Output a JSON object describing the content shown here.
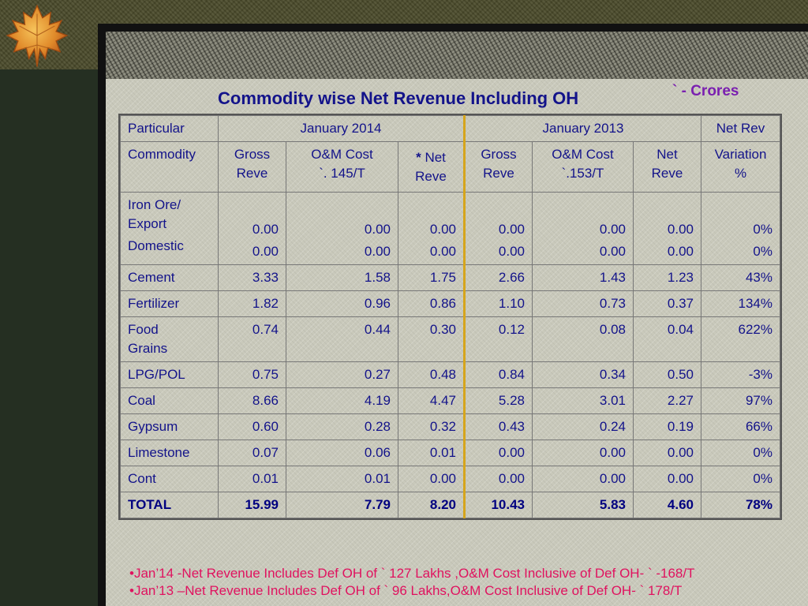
{
  "title": "Commodity wise Net Revenue Including OH",
  "units": "` - Crores",
  "header": {
    "particular": "Particular",
    "jan2014": "January 2014",
    "jan2013": "January 2013",
    "net_rev": "Net Rev",
    "commodity": "Commodity",
    "gross_reve_1": [
      "Gross",
      "Reve"
    ],
    "om_cost_1": [
      "O&M Cost",
      "`. 145/T"
    ],
    "net_reve_1_star": "*",
    "net_reve_1": [
      "Net",
      "Reve"
    ],
    "gross_reve_2": [
      "Gross",
      "Reve"
    ],
    "om_cost_2": [
      "O&M Cost",
      "`.153/T"
    ],
    "net_reve_2": [
      "Net",
      "Reve"
    ],
    "variation": [
      "Variation",
      "%"
    ]
  },
  "iron_ore": {
    "label_lines": [
      "Iron Ore/",
      "Export",
      "Domestic"
    ],
    "export": [
      "0.00",
      "0.00",
      "0.00",
      "0.00",
      "0.00",
      "0.00",
      "0%"
    ],
    "domestic": [
      "0.00",
      "0.00",
      "0.00",
      "0.00",
      "0.00",
      "0.00",
      "0%"
    ]
  },
  "rows": [
    {
      "name": "Cement",
      "values": [
        "3.33",
        "1.58",
        "1.75",
        "2.66",
        "1.43",
        "1.23",
        "43%"
      ]
    },
    {
      "name": "Fertilizer",
      "values": [
        "1.82",
        "0.96",
        "0.86",
        "1.10",
        "0.73",
        "0.37",
        "134%"
      ]
    },
    {
      "name": "Food Grains",
      "name_lines": [
        "Food",
        "Grains"
      ],
      "values": [
        "0.74",
        "0.44",
        "0.30",
        "0.12",
        "0.08",
        "0.04",
        "622%"
      ]
    },
    {
      "name": "LPG/POL",
      "values": [
        "0.75",
        "0.27",
        "0.48",
        "0.84",
        "0.34",
        "0.50",
        "-3%"
      ]
    },
    {
      "name": "Coal",
      "values": [
        "8.66",
        "4.19",
        "4.47",
        "5.28",
        "3.01",
        "2.27",
        "97%"
      ]
    },
    {
      "name": "Gypsum",
      "values": [
        "0.60",
        "0.28",
        "0.32",
        "0.43",
        "0.24",
        "0.19",
        "66%"
      ]
    },
    {
      "name": "Limestone",
      "values": [
        "0.07",
        "0.06",
        "0.01",
        "0.00",
        "0.00",
        "0.00",
        "0%"
      ]
    },
    {
      "name": "Cont",
      "values": [
        "0.01",
        "0.01",
        "0.00",
        "0.00",
        "0.00",
        "0.00",
        "0%"
      ]
    },
    {
      "name": "TOTAL",
      "values": [
        "15.99",
        "7.79",
        "8.20",
        "10.43",
        "5.83",
        "4.60",
        "78%"
      ]
    }
  ],
  "notes": [
    "•Jan’14 -Net Revenue Includes Def OH of  ` 127 Lakhs ,O&M Cost Inclusive of Def OH- ` -168/T",
    "•Jan’13 –Net Revenue Includes Def OH of  ` 96 Lakhs,O&M Cost Inclusive of Def OH- ` 178/T"
  ],
  "colors": {
    "title": "#13138a",
    "units": "#7a1fb0",
    "notes": "#e0125f",
    "divider": "#d6a51c"
  }
}
